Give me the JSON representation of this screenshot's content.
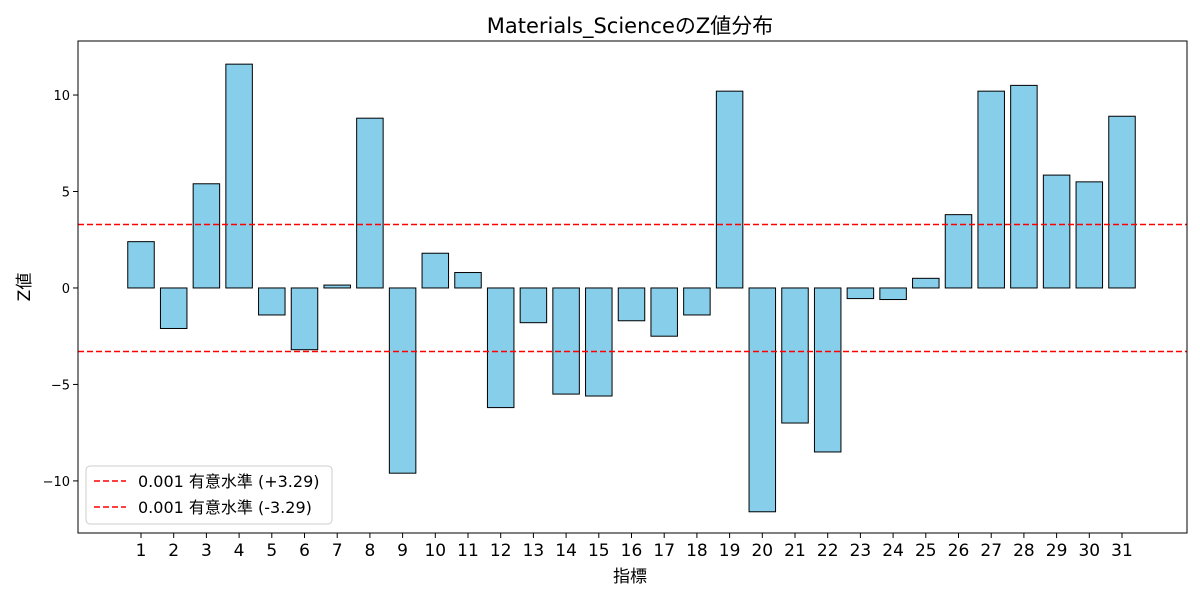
{
  "chart_data": {
    "type": "bar",
    "title": "Materials_ScienceのZ値分布",
    "xlabel": "指標",
    "ylabel": "Z値",
    "categories": [
      "1",
      "2",
      "3",
      "4",
      "5",
      "6",
      "7",
      "8",
      "9",
      "10",
      "11",
      "12",
      "13",
      "14",
      "15",
      "16",
      "17",
      "18",
      "19",
      "20",
      "21",
      "22",
      "23",
      "24",
      "25",
      "26",
      "27",
      "28",
      "29",
      "30",
      "31"
    ],
    "values": [
      2.4,
      -2.1,
      5.4,
      11.6,
      -1.4,
      -3.2,
      0.15,
      8.8,
      -9.6,
      1.8,
      0.8,
      -6.2,
      -1.8,
      -5.5,
      -5.6,
      -1.7,
      -2.5,
      -1.4,
      10.2,
      -11.6,
      -7.0,
      -8.5,
      -0.55,
      -0.6,
      0.5,
      3.8,
      10.2,
      10.5,
      5.85,
      5.5,
      8.9
    ],
    "ylim": [
      -12.7,
      12.8
    ],
    "yticks": [
      -10,
      -5,
      0,
      5,
      10
    ],
    "ytick_labels": [
      "−10",
      "−5",
      "0",
      "5",
      "10"
    ],
    "bar_color": "#87ceeb",
    "bar_edge_color": "#000000",
    "reference_lines": [
      {
        "value": 3.29,
        "label": "0.001 有意水準 (+3.29)",
        "color": "#ff0000",
        "style": "dashed"
      },
      {
        "value": -3.29,
        "label": "0.001 有意水準 (-3.29)",
        "color": "#ff0000",
        "style": "dashed"
      }
    ],
    "legend_position": "lower-left",
    "grid": false
  }
}
